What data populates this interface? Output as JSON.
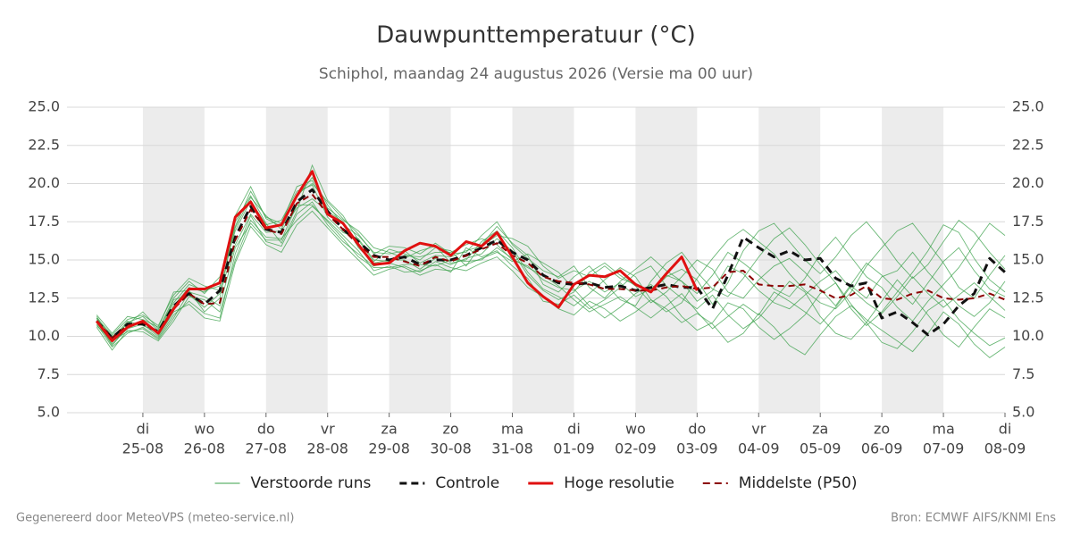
{
  "chart_data": {
    "type": "line",
    "title": "Dauwpunttemperatuur (°C)",
    "subtitle": "Schiphol, maandag 24 augustus 2026 (Versie ma 00 uur)",
    "footer_left": "Gegenereerd door MeteoVPS (meteo-service.nl)",
    "footer_right": "Bron: ECMWF AIFS/KNMI Ens",
    "xlim": [
      -0.232,
      15
    ],
    "xticks": [
      {
        "value": 1,
        "label": "di",
        "date": "25-08"
      },
      {
        "value": 2,
        "label": "wo",
        "date": "26-08"
      },
      {
        "value": 3,
        "label": "do",
        "date": "27-08"
      },
      {
        "value": 4,
        "label": "vr",
        "date": "28-08"
      },
      {
        "value": 5,
        "label": "za",
        "date": "29-08"
      },
      {
        "value": 6,
        "label": "zo",
        "date": "30-08"
      },
      {
        "value": 7,
        "label": "ma",
        "date": "31-08"
      },
      {
        "value": 8,
        "label": "di",
        "date": "01-09"
      },
      {
        "value": 9,
        "label": "wo",
        "date": "02-09"
      },
      {
        "value": 10,
        "label": "do",
        "date": "03-09"
      },
      {
        "value": 11,
        "label": "vr",
        "date": "04-09"
      },
      {
        "value": 12,
        "label": "za",
        "date": "05-09"
      },
      {
        "value": 13,
        "label": "zo",
        "date": "06-09"
      },
      {
        "value": 14,
        "label": "ma",
        "date": "07-09"
      },
      {
        "value": 15,
        "label": "di",
        "date": "08-09"
      }
    ],
    "ylim": [
      5,
      25
    ],
    "yticks": [
      {
        "value": 5,
        "label": "5.0"
      },
      {
        "value": 7.5,
        "label": "7.5"
      },
      {
        "value": 10,
        "label": "10.0"
      },
      {
        "value": 12.5,
        "label": "12.5"
      },
      {
        "value": 15,
        "label": "15.0"
      },
      {
        "value": 17.5,
        "label": "17.5"
      },
      {
        "value": 20,
        "label": "20.0"
      },
      {
        "value": 22.5,
        "label": "22.5"
      },
      {
        "value": 25,
        "label": "25.0"
      }
    ],
    "grid": true,
    "x": [
      0.25,
      0.5,
      0.75,
      1,
      1.25,
      1.5,
      1.75,
      2,
      2.25,
      2.5,
      2.75,
      3,
      3.25,
      3.5,
      3.75,
      4,
      4.25,
      4.5,
      4.75,
      5,
      5.25,
      5.5,
      5.75,
      6,
      6.25,
      6.5,
      6.75,
      7,
      7.25,
      7.5,
      7.75,
      8,
      8.25,
      8.5,
      8.75,
      9,
      9.25,
      9.5,
      9.75,
      10,
      10.25,
      10.5,
      10.75,
      11,
      11.25,
      11.5,
      11.75,
      12,
      12.25,
      12.5,
      12.75,
      13,
      13.25,
      13.5,
      13.75,
      14,
      14.25,
      14.5,
      14.75,
      15
    ],
    "ensemble": {
      "name": "Verstoorde runs",
      "color": "#3aa04a",
      "members": [
        [
          11.2,
          9.6,
          10.9,
          11.3,
          10.4,
          12.5,
          13.6,
          12.8,
          13.9,
          17.2,
          19.5,
          17.8,
          17.4,
          19.8,
          20.2,
          18.4,
          17.6,
          16.9,
          15.8,
          15.5,
          15.1,
          15.6,
          15.9,
          14.8,
          15.0,
          16.2,
          16.9,
          15.8,
          14.2,
          13.1,
          12.6,
          12.0,
          12.8,
          13.7,
          14.5,
          13.9,
          12.4,
          11.6,
          12.2,
          13.8,
          15.1,
          16.3,
          17.0,
          16.2,
          15.4,
          14.1,
          13.0,
          12.2,
          11.8,
          12.9,
          14.6,
          15.8,
          16.9,
          17.4,
          16.1,
          14.8,
          13.2,
          12.5,
          14.0,
          15.3
        ],
        [
          10.8,
          9.3,
          10.2,
          10.6,
          9.9,
          11.4,
          12.3,
          11.5,
          11.2,
          15.4,
          17.9,
          16.2,
          15.9,
          18.0,
          18.8,
          17.3,
          16.2,
          15.4,
          14.6,
          14.8,
          14.5,
          14.0,
          14.4,
          14.3,
          14.7,
          15.1,
          15.5,
          14.9,
          15.4,
          14.8,
          14.2,
          13.1,
          12.0,
          11.2,
          11.9,
          12.8,
          13.4,
          12.6,
          11.3,
          10.4,
          10.9,
          12.2,
          11.8,
          10.6,
          9.8,
          10.5,
          11.4,
          12.8,
          13.5,
          12.1,
          10.9,
          9.6,
          9.2,
          10.3,
          11.7,
          12.4,
          11.1,
          10.2,
          9.4,
          9.9
        ],
        [
          11.4,
          10.2,
          11.3,
          11.1,
          10.6,
          12.9,
          13.0,
          11.6,
          12.5,
          17.5,
          19.2,
          17.4,
          16.1,
          18.2,
          21.2,
          18.9,
          17.9,
          16.3,
          14.9,
          15.7,
          15.4,
          15.0,
          15.8,
          15.6,
          14.6,
          16.0,
          17.2,
          16.1,
          15.3,
          13.4,
          12.9,
          13.9,
          14.6,
          13.5,
          12.4,
          12.0,
          13.6,
          14.8,
          15.5,
          14.2,
          13.1,
          12.6,
          13.8,
          15.2,
          16.4,
          17.1,
          16.0,
          14.7,
          13.5,
          11.8,
          10.7,
          11.6,
          12.9,
          14.2,
          15.6,
          17.3,
          16.8,
          15.1,
          13.7,
          12.9
        ],
        [
          10.6,
          9.1,
          10.4,
          10.3,
          9.7,
          11.0,
          12.6,
          12.4,
          11.6,
          15.0,
          17.6,
          16.5,
          16.4,
          17.6,
          18.5,
          17.6,
          16.6,
          15.6,
          14.3,
          14.6,
          14.2,
          14.3,
          14.7,
          14.2,
          15.8,
          15.2,
          15.6,
          14.6,
          13.8,
          12.3,
          12.1,
          12.7,
          11.8,
          12.4,
          13.2,
          14.1,
          14.6,
          13.3,
          12.5,
          11.8,
          12.7,
          11.4,
          10.5,
          11.2,
          12.4,
          13.6,
          12.9,
          11.3,
          10.2,
          9.8,
          10.9,
          12.3,
          13.7,
          12.6,
          11.4,
          10.1,
          9.3,
          10.6,
          11.8,
          11.2
        ],
        [
          11.1,
          10.0,
          10.8,
          11.6,
          10.5,
          12.2,
          13.4,
          13.0,
          13.3,
          17.9,
          19.8,
          17.7,
          17.2,
          19.1,
          20.4,
          18.6,
          17.3,
          16.6,
          15.5,
          15.4,
          15.6,
          14.8,
          15.3,
          15.2,
          15.6,
          15.9,
          16.6,
          16.4,
          15.9,
          14.6,
          13.8,
          14.3,
          13.9,
          14.6,
          13.8,
          13.4,
          12.9,
          13.9,
          14.4,
          13.7,
          12.1,
          13.5,
          15.6,
          16.9,
          17.4,
          16.2,
          15.0,
          14.1,
          15.2,
          16.6,
          17.5,
          16.3,
          14.9,
          13.8,
          14.7,
          16.2,
          17.6,
          16.8,
          15.5,
          14.4
        ],
        [
          10.9,
          9.5,
          10.5,
          10.8,
          10.0,
          11.6,
          12.1,
          11.2,
          11.0,
          14.8,
          17.2,
          16.0,
          15.5,
          17.3,
          18.2,
          17.1,
          16.0,
          15.0,
          14.0,
          14.4,
          14.6,
          14.2,
          14.9,
          14.5,
          14.3,
          14.8,
          15.2,
          14.3,
          13.2,
          12.6,
          11.8,
          11.4,
          12.3,
          11.8,
          11.0,
          11.6,
          12.4,
          11.8,
          10.9,
          11.5,
          10.8,
          9.6,
          10.2,
          11.5,
          10.6,
          9.4,
          8.8,
          10.1,
          11.3,
          12.0,
          11.1,
          10.4,
          9.7,
          9.0,
          10.2,
          11.6,
          10.8,
          9.5,
          8.6,
          9.3
        ],
        [
          11.3,
          9.8,
          11.0,
          10.7,
          10.3,
          12.0,
          13.2,
          12.9,
          13.6,
          16.9,
          18.9,
          17.3,
          17.6,
          19.5,
          19.9,
          17.8,
          16.8,
          16.4,
          15.0,
          14.9,
          15.3,
          15.2,
          15.5,
          15.5,
          16.0,
          16.4,
          16.0,
          15.0,
          14.6,
          13.7,
          13.2,
          13.0,
          13.6,
          12.9,
          13.5,
          12.6,
          13.1,
          14.0,
          13.6,
          12.3,
          13.0,
          14.6,
          14.1,
          13.0,
          12.2,
          11.8,
          12.7,
          13.6,
          14.3,
          13.1,
          12.2,
          11.5,
          12.6,
          13.9,
          12.8,
          11.9,
          12.7,
          13.5,
          12.6,
          11.7
        ],
        [
          11.0,
          9.4,
          10.6,
          11.0,
          10.1,
          12.4,
          12.7,
          11.9,
          12.8,
          16.0,
          18.0,
          16.8,
          16.9,
          18.4,
          19.0,
          18.2,
          17.5,
          15.8,
          14.8,
          15.0,
          15.0,
          14.4,
          15.1,
          14.7,
          15.1,
          15.4,
          16.4,
          15.6,
          14.0,
          13.0,
          12.4,
          12.9,
          14.2,
          14.8,
          14.0,
          13.3,
          12.2,
          12.9,
          13.9,
          15.0,
          14.4,
          12.9,
          12.5,
          13.7,
          14.6,
          15.1,
          14.2,
          13.1,
          12.0,
          13.4,
          14.8,
          14.0,
          13.0,
          12.1,
          13.5,
          14.9,
          15.8,
          14.3,
          13.1,
          12.6
        ],
        [
          10.7,
          9.7,
          10.3,
          10.5,
          9.8,
          11.2,
          12.9,
          12.6,
          12.0,
          15.8,
          17.4,
          16.3,
          16.3,
          18.6,
          18.6,
          17.5,
          16.4,
          15.2,
          14.5,
          14.5,
          14.7,
          14.7,
          14.6,
          15.0,
          14.9,
          15.0,
          15.8,
          15.1,
          14.5,
          14.0,
          13.3,
          12.4,
          11.6,
          12.1,
          12.6,
          11.9,
          11.2,
          12.0,
          12.8,
          11.6,
          10.5,
          11.3,
          12.1,
          11.4,
          12.9,
          12.3,
          11.6,
          10.8,
          11.9,
          13.3,
          12.5,
          13.9,
          14.3,
          15.5,
          14.2,
          13.1,
          12.0,
          11.3,
          12.2,
          13.6
        ],
        [
          11.2,
          10.1,
          11.1,
          11.4,
          10.7,
          12.7,
          13.8,
          13.3,
          13.0,
          17.1,
          19.1,
          17.9,
          17.0,
          19.3,
          20.0,
          18.8,
          17.7,
          16.7,
          15.4,
          15.9,
          15.8,
          15.4,
          16.1,
          15.4,
          15.5,
          16.6,
          17.5,
          16.0,
          15.1,
          14.3,
          13.9,
          14.6,
          13.2,
          12.5,
          13.6,
          14.4,
          15.2,
          14.3,
          13.6,
          12.8,
          14.0,
          15.5,
          14.8,
          14.0,
          13.1,
          12.6,
          13.8,
          15.4,
          16.5,
          15.2,
          13.9,
          13.2,
          11.9,
          11.0,
          12.3,
          13.4,
          14.5,
          16.0,
          17.4,
          16.6
        ]
      ]
    },
    "series": [
      {
        "name": "Controle",
        "color": "#111111",
        "dash": true,
        "values": [
          11.0,
          9.9,
          10.8,
          10.8,
          10.3,
          12.0,
          12.8,
          12.1,
          13.0,
          16.5,
          18.5,
          17.0,
          16.8,
          18.8,
          19.6,
          18.2,
          17.0,
          16.2,
          15.3,
          15.0,
          15.2,
          14.7,
          15.0,
          15.0,
          15.3,
          15.8,
          16.3,
          15.5,
          15.0,
          14.0,
          13.5,
          13.4,
          13.5,
          13.2,
          13.3,
          13.0,
          13.2,
          13.4,
          13.2,
          13.2,
          11.8,
          14.0,
          16.5,
          15.8,
          15.2,
          15.6,
          15.0,
          15.1,
          13.8,
          13.3,
          13.5,
          11.2,
          11.6,
          10.9,
          10.1,
          10.8,
          12.0,
          12.8,
          15.1,
          14.2
        ]
      },
      {
        "name": "Hoge resolutie",
        "color": "#e01010",
        "dash": false,
        "values": [
          11.0,
          9.7,
          10.6,
          11.0,
          10.2,
          11.8,
          13.1,
          13.1,
          13.5,
          17.8,
          18.8,
          17.1,
          17.3,
          19.2,
          20.8,
          18.0,
          17.4,
          16.0,
          14.7,
          14.8,
          15.6,
          16.1,
          15.9,
          15.3,
          16.2,
          15.9,
          16.8,
          15.2,
          13.5,
          12.6,
          11.9,
          13.4,
          14.0,
          13.9,
          14.3,
          13.4,
          12.9,
          14.1,
          15.2,
          13.0,
          null,
          null,
          null,
          null,
          null,
          null,
          null,
          null,
          null,
          null,
          null,
          null,
          null,
          null,
          null,
          null,
          null,
          null,
          null,
          null
        ]
      },
      {
        "name": "Middelste (P50)",
        "color": "#8b0000",
        "dash": true,
        "values": [
          11.0,
          9.9,
          10.7,
          10.9,
          10.2,
          11.8,
          12.8,
          12.1,
          12.2,
          16.3,
          18.3,
          17.0,
          16.7,
          18.7,
          19.3,
          18.0,
          17.0,
          16.0,
          15.2,
          15.2,
          14.9,
          14.6,
          15.2,
          14.9,
          15.3,
          15.7,
          16.1,
          15.3,
          14.8,
          13.9,
          13.6,
          13.5,
          13.4,
          13.1,
          13.1,
          13.0,
          13.0,
          13.2,
          13.3,
          13.1,
          13.2,
          14.2,
          14.3,
          13.4,
          13.3,
          13.3,
          13.4,
          13.0,
          12.5,
          12.7,
          13.3,
          12.5,
          12.4,
          12.8,
          13.0,
          12.5,
          12.4,
          12.5,
          12.8,
          12.4
        ]
      }
    ]
  }
}
